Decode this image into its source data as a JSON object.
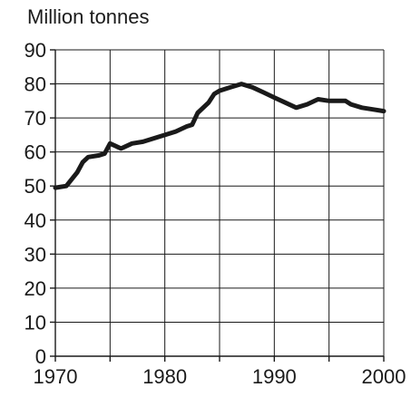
{
  "chart_data": {
    "type": "line",
    "title": "",
    "xlabel": "",
    "ylabel": "Million tonnes",
    "xlim": [
      1970,
      2000
    ],
    "ylim": [
      0,
      90
    ],
    "x_ticks": [
      1970,
      1980,
      1990,
      2000
    ],
    "y_ticks": [
      0,
      10,
      20,
      30,
      40,
      50,
      60,
      70,
      80,
      90
    ],
    "grid": true,
    "series": [
      {
        "x": [
          1970,
          1971,
          1972,
          1972.5,
          1973,
          1974,
          1974.5,
          1975,
          1976,
          1977,
          1978,
          1979,
          1980,
          1981,
          1982,
          1982.5,
          1983,
          1984,
          1984.5,
          1985,
          1986,
          1987,
          1988,
          1989,
          1990,
          1991,
          1992,
          1993,
          1994,
          1995,
          1996,
          1996.5,
          1997,
          1998,
          1999,
          2000
        ],
        "y": [
          49.5,
          50,
          54,
          57,
          58.5,
          59,
          59.5,
          62.5,
          61,
          62.5,
          63,
          64,
          65,
          66,
          67.5,
          68,
          71.5,
          74.5,
          77,
          78,
          79,
          80,
          79,
          77.5,
          76,
          74.5,
          73,
          74,
          75.5,
          75,
          75,
          75,
          74,
          73,
          72.5,
          72
        ]
      }
    ]
  }
}
